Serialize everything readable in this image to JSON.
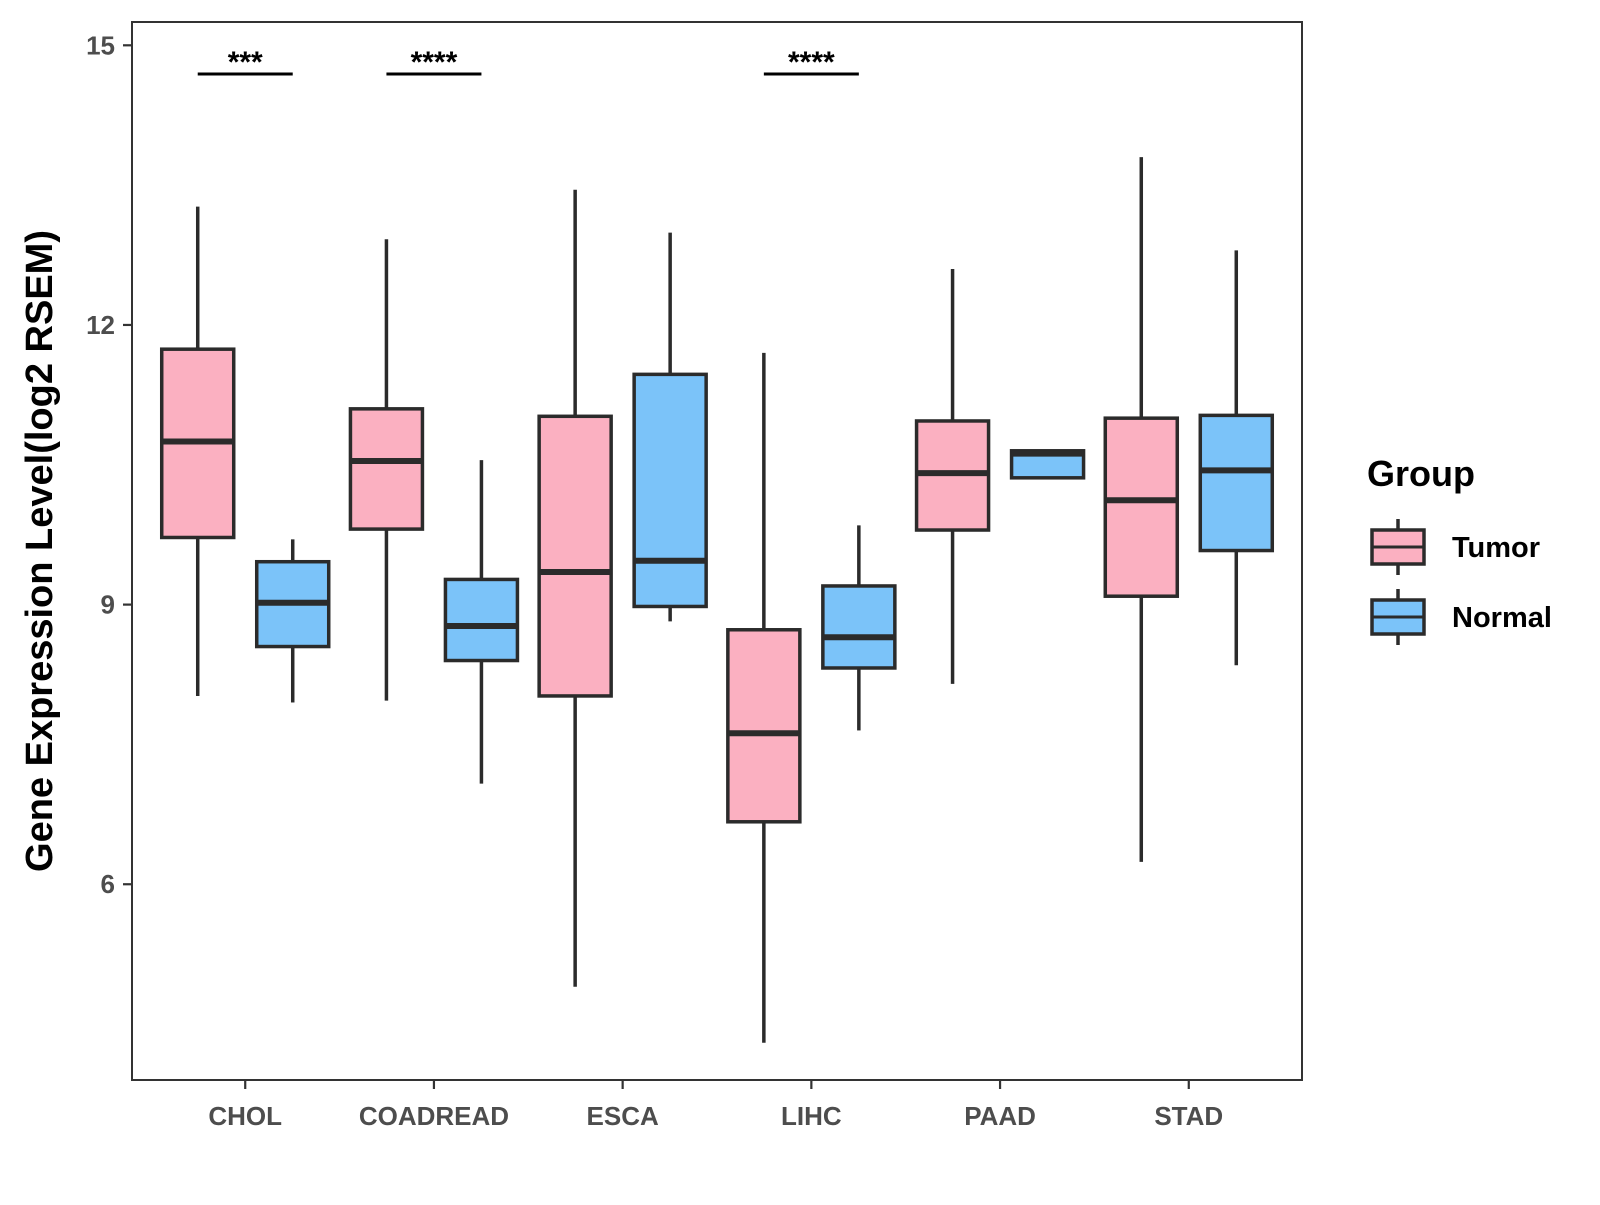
{
  "chart_data": {
    "type": "boxplot",
    "title": "",
    "xlabel": "",
    "ylabel": "Gene Expression Level(log2 RSEM)",
    "ylim": [
      3.9,
      15.25
    ],
    "yticks": [
      6,
      9,
      12,
      15
    ],
    "grid": false,
    "legend": {
      "title": "Group",
      "position": "right"
    },
    "categories": [
      "CHOL",
      "COADREAD",
      "ESCA",
      "LIHC",
      "PAAD",
      "STAD"
    ],
    "series": [
      {
        "name": "Tumor",
        "color": "#FBB0C1",
        "boxes": [
          {
            "category": "CHOL",
            "min": 8.02,
            "q1": 9.72,
            "median": 10.75,
            "q3": 11.74,
            "max": 13.27
          },
          {
            "category": "COADREAD",
            "min": 7.97,
            "q1": 9.81,
            "median": 10.54,
            "q3": 11.1,
            "max": 12.92
          },
          {
            "category": "ESCA",
            "min": 4.9,
            "q1": 8.02,
            "median": 9.35,
            "q3": 11.02,
            "max": 13.45
          },
          {
            "category": "LIHC",
            "min": 4.3,
            "q1": 6.67,
            "median": 7.62,
            "q3": 8.73,
            "max": 11.7
          },
          {
            "category": "PAAD",
            "min": 8.15,
            "q1": 9.8,
            "median": 10.41,
            "q3": 10.97,
            "max": 12.6
          },
          {
            "category": "STAD",
            "min": 6.24,
            "q1": 9.09,
            "median": 10.12,
            "q3": 11.0,
            "max": 13.8
          }
        ]
      },
      {
        "name": "Normal",
        "color": "#7BC3F9",
        "boxes": [
          {
            "category": "CHOL",
            "min": 7.95,
            "q1": 8.55,
            "median": 9.02,
            "q3": 9.46,
            "max": 9.7
          },
          {
            "category": "COADREAD",
            "min": 7.08,
            "q1": 8.4,
            "median": 8.77,
            "q3": 9.27,
            "max": 10.55
          },
          {
            "category": "ESCA",
            "min": 8.82,
            "q1": 8.98,
            "median": 9.47,
            "q3": 11.47,
            "max": 12.99
          },
          {
            "category": "LIHC",
            "min": 7.65,
            "q1": 8.32,
            "median": 8.65,
            "q3": 9.2,
            "max": 9.85
          },
          {
            "category": "PAAD",
            "min": 10.36,
            "q1": 10.36,
            "median": 10.62,
            "q3": 10.65,
            "max": 10.65
          },
          {
            "category": "STAD",
            "min": 8.35,
            "q1": 9.58,
            "median": 10.44,
            "q3": 11.03,
            "max": 12.8
          }
        ]
      }
    ],
    "significance": [
      {
        "category": "CHOL",
        "label": "***"
      },
      {
        "category": "COADREAD",
        "label": "****"
      },
      {
        "category": "ESCA",
        "label": ""
      },
      {
        "category": "LIHC",
        "label": "****"
      },
      {
        "category": "PAAD",
        "label": ""
      },
      {
        "category": "STAD",
        "label": ""
      }
    ]
  }
}
